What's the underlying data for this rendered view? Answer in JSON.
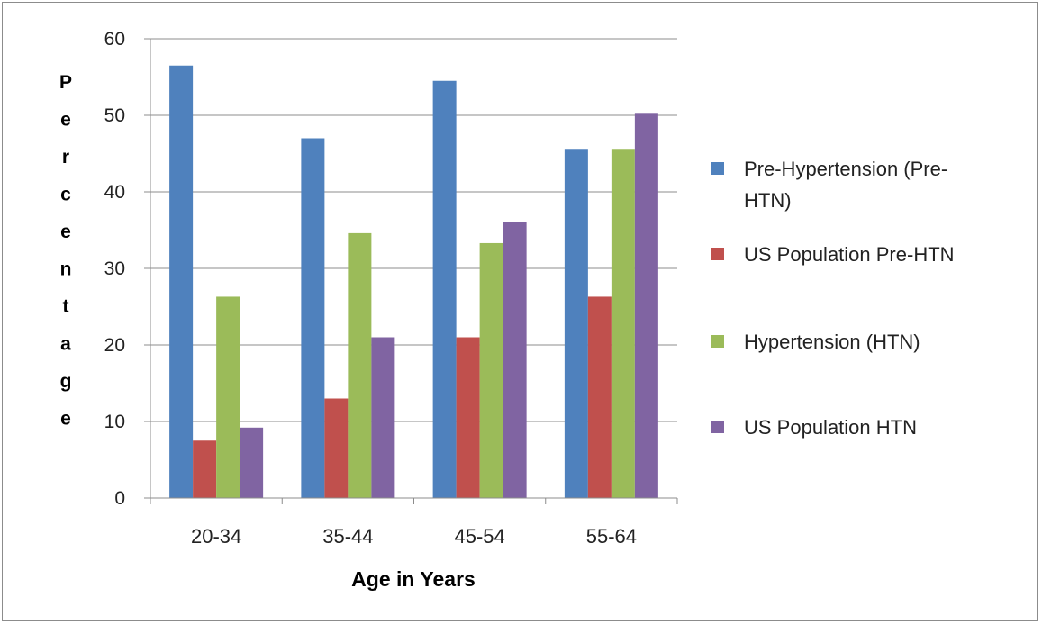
{
  "chart_data": {
    "type": "bar",
    "categories": [
      "20-34",
      "35-44",
      "45-54",
      "55-64"
    ],
    "series": [
      {
        "name": "Pre-Hypertension (Pre-HTN)",
        "values": [
          56.5,
          47,
          54.5,
          45.5
        ],
        "color": "#4F81BD"
      },
      {
        "name": "US Population Pre-HTN",
        "values": [
          7.5,
          13,
          21,
          26.3
        ],
        "color": "#C0504D"
      },
      {
        "name": "Hypertension (HTN)",
        "values": [
          26.3,
          34.6,
          33.3,
          45.5
        ],
        "color": "#9BBB59"
      },
      {
        "name": "US Population HTN",
        "values": [
          9.2,
          21,
          36,
          50.2
        ],
        "color": "#8064A2"
      }
    ],
    "xlabel": "Age in Years",
    "ylabel": "Percentage",
    "ylim": [
      0,
      60
    ],
    "yticks": [
      0,
      10,
      20,
      30,
      40,
      50,
      60
    ],
    "grid": true,
    "legend_position": "right"
  },
  "legend": {
    "items": [
      {
        "line1": "Pre-Hypertension (Pre-",
        "line2": "HTN)"
      },
      {
        "line1": "US Population Pre-HTN",
        "line2": ""
      },
      {
        "line1": "Hypertension (HTN)",
        "line2": ""
      },
      {
        "line1": "US Population HTN",
        "line2": ""
      }
    ]
  }
}
